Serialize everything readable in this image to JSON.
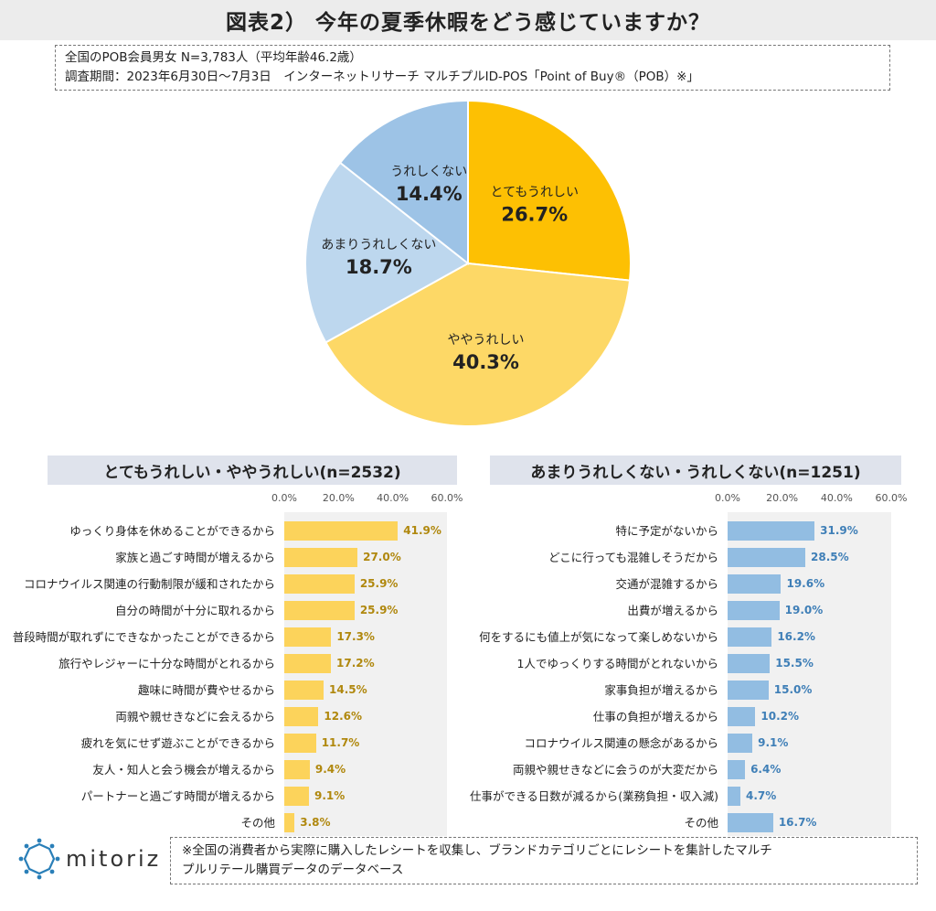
{
  "header": {
    "title": "図表2） 今年の夏季休暇をどう感じていますか？",
    "info_line1": "全国のPOB会員男女 N=3,783人（平均年齢46.2歳）",
    "info_line2": "調査期間：2023年6月30日～7月3日　インターネットリサーチ マルチプルID-POS「Point of Buy®（POB）※」"
  },
  "chart_data": [
    {
      "type": "pie",
      "slices": [
        {
          "label": "とてもうれしい",
          "value": 26.7,
          "display": "26.7%",
          "color": "#fdc003"
        },
        {
          "label": "ややうれしい",
          "value": 40.3,
          "display": "40.3%",
          "color": "#fdd866"
        },
        {
          "label": "あまりうれしくない",
          "value": 18.7,
          "display": "18.7%",
          "color": "#bdd7ee"
        },
        {
          "label": "うれしくない",
          "value": 14.4,
          "display": "14.4%",
          "color": "#9dc3e6"
        }
      ]
    },
    {
      "type": "bar",
      "orientation": "horizontal",
      "title": "とてもうれしい・ややうれしい(n=2532)",
      "xlim": [
        0,
        60
      ],
      "ticks": [
        "0.0%",
        "20.0%",
        "40.0%",
        "60.0%"
      ],
      "categories": [
        "ゆっくり身体を休めることができるから",
        "家族と過ごす時間が増えるから",
        "コロナウイルス関連の行動制限が緩和されたから",
        "自分の時間が十分に取れるから",
        "普段時間が取れずにできなかったことができるから",
        "旅行やレジャーに十分な時間がとれるから",
        "趣味に時間が費やせるから",
        "両親や親せきなどに会えるから",
        "疲れを気にせず遊ぶことができるから",
        "友人・知人と会う機会が増えるから",
        "パートナーと過ごす時間が増えるから",
        "その他"
      ],
      "values": [
        41.9,
        27.0,
        25.9,
        25.9,
        17.3,
        17.2,
        14.5,
        12.6,
        11.7,
        9.4,
        9.1,
        3.8
      ],
      "labels": [
        "41.9%",
        "27.0%",
        "25.9%",
        "25.9%",
        "17.3%",
        "17.2%",
        "14.5%",
        "12.6%",
        "11.7%",
        "9.4%",
        "9.1%",
        "3.8%"
      ],
      "color": "#fcd35b"
    },
    {
      "type": "bar",
      "orientation": "horizontal",
      "title": "あまりうれしくない・うれしくない(n=1251)",
      "xlim": [
        0,
        60
      ],
      "ticks": [
        "0.0%",
        "20.0%",
        "40.0%",
        "60.0%"
      ],
      "categories": [
        "特に予定がないから",
        "どこに行っても混雑しそうだから",
        "交通が混雑するから",
        "出費が増えるから",
        "何をするにも値上が気になって楽しめないから",
        "1人でゆっくりする時間がとれないから",
        "家事負担が増えるから",
        "仕事の負担が増えるから",
        "コロナウイルス関連の懸念があるから",
        "両親や親せきなどに会うのが大変だから",
        "仕事ができる日数が減るから(業務負担・収入減)",
        "その他"
      ],
      "values": [
        31.9,
        28.5,
        19.6,
        19.0,
        16.2,
        15.5,
        15.0,
        10.2,
        9.1,
        6.4,
        4.7,
        16.7
      ],
      "labels": [
        "31.9%",
        "28.5%",
        "19.6%",
        "19.0%",
        "16.2%",
        "15.5%",
        "15.0%",
        "10.2%",
        "9.1%",
        "6.4%",
        "4.7%",
        "16.7%"
      ],
      "color": "#92bde2"
    }
  ],
  "footer": {
    "logo_text": "mitoriz",
    "note_line1": "※全国の消費者から実際に購入したレシートを収集し、ブランドカテゴリごとにレシートを集計したマルチ",
    "note_line2": "プルリテール購買データのデータベース"
  }
}
